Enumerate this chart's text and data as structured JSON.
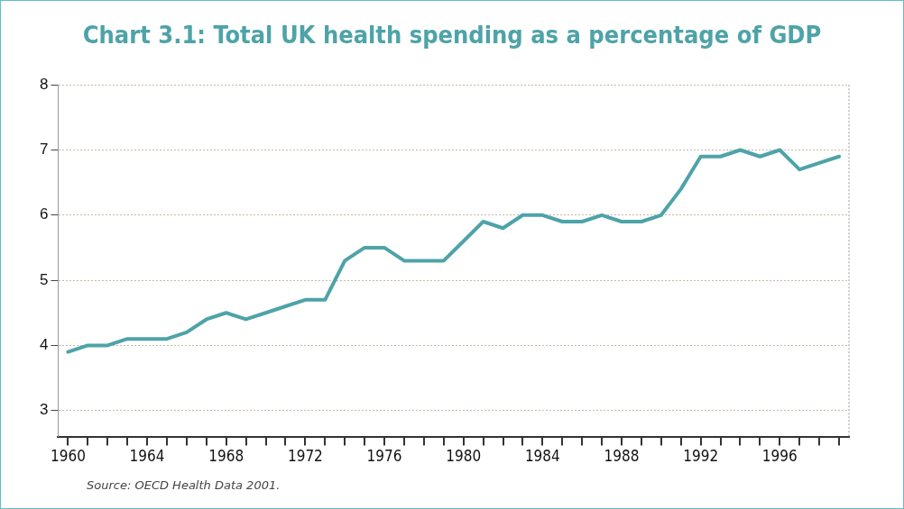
{
  "chart_data": {
    "type": "line",
    "title": "Chart 3.1: Total UK health spending as a percentage of GDP",
    "categories": [
      "1960",
      null,
      null,
      null,
      "1964",
      null,
      null,
      null,
      "1968",
      null,
      null,
      null,
      "1972",
      null,
      null,
      null,
      "1976",
      null,
      null,
      null,
      "1980",
      null,
      null,
      null,
      "1984",
      null,
      null,
      null,
      "1988",
      null,
      null,
      null,
      "1992",
      null,
      null,
      null,
      "1996",
      null,
      null,
      null
    ],
    "series": [
      {
        "color": "#4ea3a8",
        "values": [
          3.9,
          4.0,
          4.0,
          4.1,
          4.1,
          4.1,
          4.2,
          4.4,
          4.5,
          4.4,
          4.5,
          4.6,
          4.7,
          4.7,
          5.3,
          5.5,
          5.5,
          5.3,
          5.3,
          5.3,
          5.6,
          5.9,
          5.8,
          6.0,
          6.0,
          5.9,
          5.9,
          6.0,
          5.9,
          5.9,
          6.0,
          6.4,
          6.9,
          6.9,
          7.0,
          6.9,
          7.0,
          6.7,
          6.8,
          6.9
        ]
      }
    ],
    "ylim": [
      2.6,
      8
    ],
    "yticks": [
      3,
      4,
      5,
      6,
      7,
      8
    ],
    "grid": "y",
    "legend": false,
    "marker": "none",
    "line_style": "solid",
    "annotations": [
      "Source: OECD Health Data 2001."
    ]
  }
}
